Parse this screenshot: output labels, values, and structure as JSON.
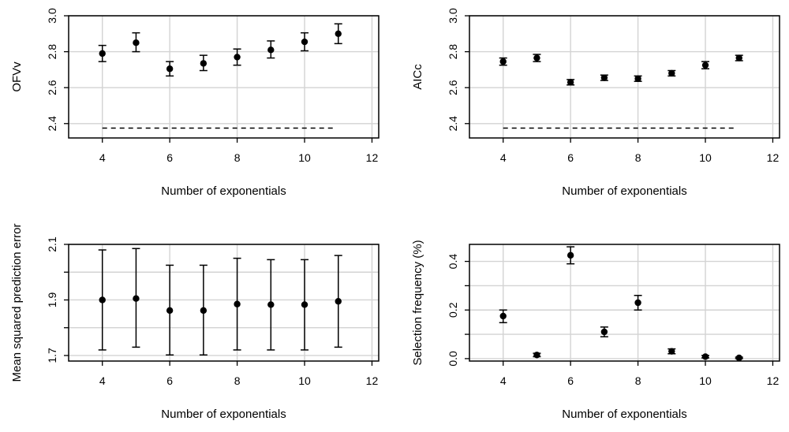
{
  "chart_data": [
    {
      "type": "scatter",
      "title": "",
      "xlabel": "Number of exponentials",
      "ylabel": "OFVv",
      "xlim": [
        3,
        12.2
      ],
      "ylim": [
        2.32,
        3.0
      ],
      "xticks": [
        4,
        6,
        8,
        10,
        12
      ],
      "yticks": [
        2.4,
        2.6,
        2.8,
        3.0
      ],
      "ytick_labels": [
        "2.4",
        "2.6",
        "2.8",
        "3.0"
      ],
      "grid": true,
      "x": [
        4,
        5,
        6,
        7,
        8,
        9,
        10,
        11
      ],
      "values": [
        2.79,
        2.85,
        2.705,
        2.735,
        2.77,
        2.81,
        2.855,
        2.9
      ],
      "err_low": [
        2.745,
        2.8,
        2.665,
        2.695,
        2.725,
        2.765,
        2.805,
        2.845
      ],
      "err_high": [
        2.835,
        2.905,
        2.745,
        2.78,
        2.815,
        2.86,
        2.905,
        2.955
      ],
      "reference_line": {
        "y": 2.375,
        "x_from": 4,
        "x_to": 10.9,
        "style": "dashed"
      }
    },
    {
      "type": "scatter",
      "title": "",
      "xlabel": "Number of exponentials",
      "ylabel": "AICc",
      "xlim": [
        3,
        12.2
      ],
      "ylim": [
        2.32,
        3.0
      ],
      "xticks": [
        4,
        6,
        8,
        10,
        12
      ],
      "yticks": [
        2.4,
        2.6,
        2.8,
        3.0
      ],
      "ytick_labels": [
        "2.4",
        "2.6",
        "2.8",
        "3.0"
      ],
      "grid": true,
      "x": [
        4,
        5,
        6,
        7,
        8,
        9,
        10,
        11
      ],
      "values": [
        2.745,
        2.765,
        2.63,
        2.655,
        2.65,
        2.68,
        2.725,
        2.765
      ],
      "err_low": [
        2.725,
        2.745,
        2.615,
        2.64,
        2.635,
        2.665,
        2.705,
        2.75
      ],
      "err_high": [
        2.765,
        2.785,
        2.645,
        2.67,
        2.665,
        2.695,
        2.745,
        2.78
      ],
      "reference_line": {
        "y": 2.375,
        "x_from": 4,
        "x_to": 10.9,
        "style": "dashed"
      }
    },
    {
      "type": "scatter",
      "title": "",
      "xlabel": "Number of exponentials",
      "ylabel": "Mean squared prediction error",
      "xlim": [
        3,
        12.2
      ],
      "ylim": [
        1.68,
        2.1
      ],
      "xticks": [
        4,
        6,
        8,
        10,
        12
      ],
      "yticks": [
        1.7,
        1.8,
        1.9,
        2.0,
        2.1
      ],
      "ytick_labels": [
        "1.7",
        "",
        "1.9",
        "",
        "2.1"
      ],
      "grid": true,
      "x": [
        4,
        5,
        6,
        7,
        8,
        9,
        10,
        11
      ],
      "values": [
        1.9,
        1.905,
        1.862,
        1.862,
        1.885,
        1.883,
        1.883,
        1.895
      ],
      "err_low": [
        1.72,
        1.73,
        1.702,
        1.702,
        1.72,
        1.72,
        1.72,
        1.73
      ],
      "err_high": [
        2.08,
        2.085,
        2.025,
        2.025,
        2.05,
        2.045,
        2.045,
        2.06
      ]
    },
    {
      "type": "scatter",
      "title": "",
      "xlabel": "Number of exponentials",
      "ylabel": "Selection frequency (%)",
      "xlim": [
        3,
        12.2
      ],
      "ylim": [
        -0.01,
        0.47
      ],
      "xticks": [
        4,
        6,
        8,
        10,
        12
      ],
      "yticks": [
        0.0,
        0.1,
        0.2,
        0.3,
        0.4
      ],
      "ytick_labels": [
        "0.0",
        "",
        "0.2",
        "",
        "0.4"
      ],
      "grid": true,
      "x": [
        4,
        5,
        6,
        7,
        8,
        9,
        10,
        11
      ],
      "values": [
        0.175,
        0.015,
        0.425,
        0.11,
        0.23,
        0.03,
        0.008,
        0.003
      ],
      "err_low": [
        0.148,
        0.008,
        0.39,
        0.09,
        0.2,
        0.02,
        0.003,
        0.0
      ],
      "err_high": [
        0.2,
        0.022,
        0.46,
        0.13,
        0.26,
        0.04,
        0.013,
        0.006
      ]
    }
  ]
}
